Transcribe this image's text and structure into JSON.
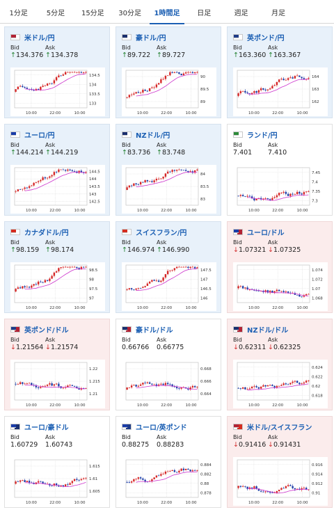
{
  "tabs": [
    {
      "label": "1分足",
      "active": false
    },
    {
      "label": "5分足",
      "active": false
    },
    {
      "label": "15分足",
      "active": false
    },
    {
      "label": "30分足",
      "active": false
    },
    {
      "label": "1時間足",
      "active": true
    },
    {
      "label": "日足",
      "active": false
    },
    {
      "label": "週足",
      "active": false
    },
    {
      "label": "月足",
      "active": false
    }
  ],
  "labels": {
    "bid": "Bid",
    "ask": "Ask"
  },
  "colors": {
    "up": "#1e7f2c",
    "down": "#d12b2b",
    "candle_up": "#d62828",
    "candle_down": "#1f3fa8",
    "ma": "#cc33cc",
    "tab_active": "#1b5fb3"
  },
  "x_labels": [
    "10:00",
    "22:00",
    "10:00"
  ],
  "pairs": [
    {
      "name": "米ドル/円",
      "flag": "us-jp-flag",
      "trend": "up",
      "bid_dir": "up",
      "bid": "134.376",
      "ask_dir": "up",
      "ask": "134.378",
      "y_ticks": [
        "134.5",
        "134",
        "133.5",
        "133"
      ]
    },
    {
      "name": "豪ドル/円",
      "flag": "au-jp-flag",
      "trend": "up",
      "bid_dir": "up",
      "bid": "89.722",
      "ask_dir": "up",
      "ask": "89.727",
      "y_ticks": [
        "90",
        "89.5",
        "89"
      ]
    },
    {
      "name": "英ポンド/円",
      "flag": "gb-jp-flag",
      "trend": "up",
      "bid_dir": "up",
      "bid": "163.360",
      "ask_dir": "up",
      "ask": "163.367",
      "y_ticks": [
        "164",
        "163",
        "162"
      ]
    },
    {
      "name": "ユーロ/円",
      "flag": "eu-jp-flag",
      "trend": "up",
      "bid_dir": "up",
      "bid": "144.214",
      "ask_dir": "up",
      "ask": "144.219",
      "y_ticks": [
        "144.5",
        "144",
        "143.5",
        "143",
        "142.5"
      ]
    },
    {
      "name": "NZドル/円",
      "flag": "nz-jp-flag",
      "trend": "up",
      "bid_dir": "up",
      "bid": "83.736",
      "ask_dir": "up",
      "ask": "83.748",
      "y_ticks": [
        "84",
        "83.5",
        "83"
      ]
    },
    {
      "name": "ランド/円",
      "flag": "za-jp-flag",
      "trend": "flat",
      "bid_dir": "none",
      "bid": "7.401",
      "ask_dir": "none",
      "ask": "7.410",
      "y_ticks": [
        "7.45",
        "7.4",
        "7.35",
        "7.3"
      ]
    },
    {
      "name": "カナダドル/円",
      "flag": "ca-jp-flag",
      "trend": "up",
      "bid_dir": "up",
      "bid": "98.159",
      "ask_dir": "up",
      "ask": "98.174",
      "y_ticks": [
        "98.5",
        "98",
        "97.5",
        "97"
      ]
    },
    {
      "name": "スイスフラン/円",
      "flag": "ch-jp-flag",
      "trend": "up",
      "bid_dir": "up",
      "bid": "146.974",
      "ask_dir": "up",
      "ask": "146.990",
      "y_ticks": [
        "147.5",
        "147",
        "146.5",
        "146"
      ]
    },
    {
      "name": "ユーロ/ドル",
      "flag": "eu-us-flag",
      "trend": "down",
      "bid_dir": "down",
      "bid": "1.07321",
      "ask_dir": "down",
      "ask": "1.07325",
      "y_ticks": [
        "1.074",
        "1.072",
        "1.07",
        "1.068"
      ]
    },
    {
      "name": "英ポンド/ドル",
      "flag": "gb-us-flag",
      "trend": "down",
      "bid_dir": "down",
      "bid": "1.21564",
      "ask_dir": "down",
      "ask": "1.21574",
      "y_ticks": [
        "1.22",
        "1.215",
        "1.21"
      ]
    },
    {
      "name": "豪ドル/ドル",
      "flag": "au-us-flag",
      "trend": "flat",
      "bid_dir": "none",
      "bid": "0.66766",
      "ask_dir": "none",
      "ask": "0.66775",
      "y_ticks": [
        "0.668",
        "0.666",
        "0.664"
      ]
    },
    {
      "name": "NZドル/ドル",
      "flag": "nz-us-flag",
      "trend": "down",
      "bid_dir": "down",
      "bid": "0.62311",
      "ask_dir": "down",
      "ask": "0.62325",
      "y_ticks": [
        "0.624",
        "0.622",
        "0.62",
        "0.618"
      ]
    },
    {
      "name": "ユーロ/豪ドル",
      "flag": "eu-au-flag",
      "trend": "flat",
      "bid_dir": "none",
      "bid": "1.60729",
      "ask_dir": "none",
      "ask": "1.60743",
      "y_ticks": [
        "1.615",
        "1.61",
        "1.605"
      ]
    },
    {
      "name": "ユーロ/英ポンド",
      "flag": "eu-gb-flag",
      "trend": "flat",
      "bid_dir": "none",
      "bid": "0.88275",
      "ask_dir": "none",
      "ask": "0.88283",
      "y_ticks": [
        "0.884",
        "0.882",
        "0.88",
        "0.878"
      ]
    },
    {
      "name": "米ドル/スイスフラン",
      "flag": "us-ch-flag",
      "trend": "down",
      "bid_dir": "down",
      "bid": "0.91416",
      "ask_dir": "down",
      "ask": "0.91431",
      "y_ticks": [
        "0.916",
        "0.914",
        "0.912",
        "0.91"
      ]
    }
  ]
}
